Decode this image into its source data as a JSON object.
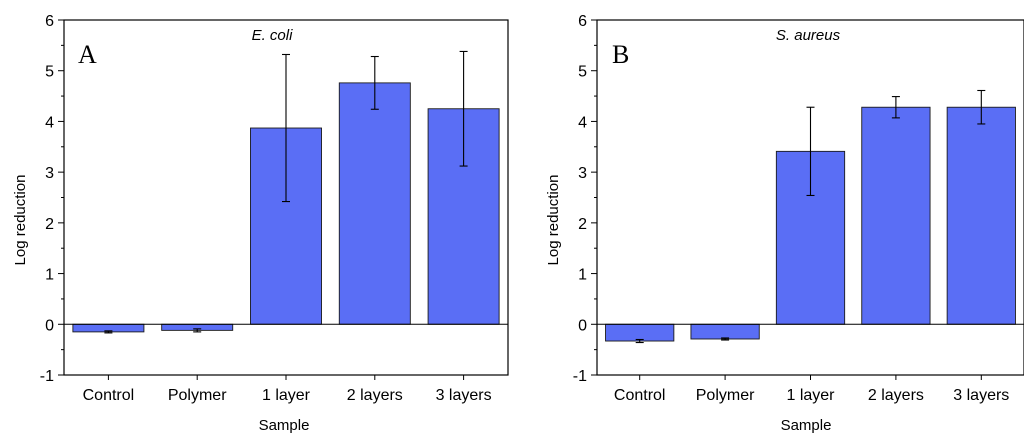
{
  "chart_data": [
    {
      "type": "bar",
      "panel_label": "A",
      "title": "E. coli",
      "xlabel": "Sample",
      "ylabel": "Log reduction",
      "ylim": [
        -1,
        6
      ],
      "yticks": [
        "-1",
        "0",
        "1",
        "2",
        "3",
        "4",
        "5",
        "6"
      ],
      "categories": [
        "Control",
        "Polymer",
        "1 layer",
        "2 layers",
        "3 layers"
      ],
      "values": [
        -0.15,
        -0.12,
        3.87,
        4.76,
        4.25
      ],
      "errors": [
        0.02,
        0.03,
        1.45,
        0.52,
        1.13
      ],
      "bar_color": "#5a6ef5",
      "grid": false
    },
    {
      "type": "bar",
      "panel_label": "B",
      "title": "S. aureus",
      "xlabel": "Sample",
      "ylabel": "Log reduction",
      "ylim": [
        -1,
        6
      ],
      "yticks": [
        "-1",
        "0",
        "1",
        "2",
        "3",
        "4",
        "5",
        "6"
      ],
      "categories": [
        "Control",
        "Polymer",
        "1 layer",
        "2 layers",
        "3 layers"
      ],
      "values": [
        -0.33,
        -0.29,
        3.41,
        4.28,
        4.28
      ],
      "errors": [
        0.03,
        0.02,
        0.87,
        0.21,
        0.33
      ],
      "bar_color": "#5a6ef5",
      "grid": false
    }
  ]
}
